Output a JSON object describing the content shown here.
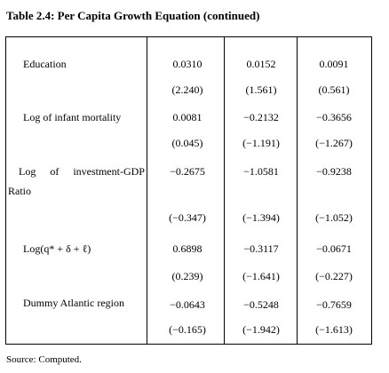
{
  "title": "Table 2.4: Per Capita Growth Equation (continued)",
  "rows": [
    {
      "label": "Education",
      "values": [
        "0.0310",
        "0.0152",
        "0.0091"
      ],
      "t": [
        "(2.240)",
        "(1.561)",
        "(0.561)"
      ]
    },
    {
      "label": "Log of infant mortality",
      "values": [
        "0.0081",
        "−0.2132",
        "−0.3656"
      ],
      "t": [
        "(0.045)",
        "(−1.191)",
        "(−1.267)"
      ]
    },
    {
      "label_words": [
        "Log",
        "of",
        "investment-GDP"
      ],
      "label_cont": "Ratio",
      "values": [
        "−0.2675",
        "−1.0581",
        "−0.9238"
      ],
      "t": [
        "(−0.347)",
        "(−1.394)",
        "(−1.052)"
      ]
    },
    {
      "label": "Log(q* + δ + ℓ)",
      "values": [
        "0.6898",
        "−0.3117",
        "−0.0671"
      ],
      "t": [
        "(0.239)",
        "(−1.641)",
        "(−0.227)"
      ]
    },
    {
      "label": "Dummy Atlantic region",
      "values": [
        "−0.0643",
        "−0.5248",
        "−0.7659"
      ],
      "t": [
        "(−0.165)",
        "(−1.942)",
        "(−1.613)"
      ]
    }
  ],
  "source": "Source: Computed."
}
